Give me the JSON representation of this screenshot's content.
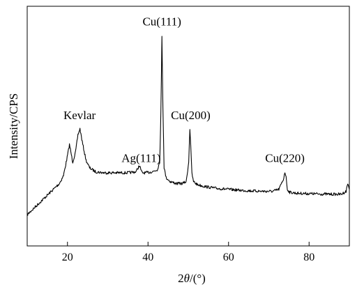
{
  "chart_data": {
    "type": "line",
    "title": "",
    "xlabel_parts": [
      "2",
      "θ",
      "/(°)"
    ],
    "ylabel": "Intensity/CPS",
    "xlim": [
      10,
      90
    ],
    "ylim": [
      0,
      100
    ],
    "x_ticks": [
      20,
      40,
      60,
      80
    ],
    "y_ticks_labeled": false,
    "grid": false,
    "legend": "none",
    "line_color": "#000000",
    "series": [
      {
        "x": [
          10,
          12,
          14,
          16,
          18,
          19,
          19.8,
          20.5,
          21.3,
          22,
          22.6,
          23.1,
          23.8,
          24.6,
          25.5,
          27,
          29,
          32,
          35,
          37,
          37.8,
          38.1,
          38.5,
          39.5,
          41,
          42.3,
          42.9,
          43.2,
          43.45,
          43.7,
          44.0,
          44.5,
          45.5,
          47,
          48.5,
          49.5,
          50.1,
          50.4,
          50.6,
          50.9,
          51.3,
          52.2,
          54,
          57,
          60,
          63,
          66,
          69,
          71,
          72.5,
          73.6,
          74.0,
          74.3,
          74.6,
          75.2,
          77,
          80,
          83,
          86,
          88,
          89.2,
          89.6,
          90
        ],
        "y": [
          6,
          10,
          14,
          18,
          22,
          26,
          34,
          42,
          33,
          38,
          47,
          50,
          42,
          34,
          30,
          28,
          27.5,
          27.5,
          27.5,
          28,
          31,
          30,
          27.5,
          27.5,
          28,
          29,
          33,
          58,
          98,
          62,
          30,
          25,
          23,
          22,
          22,
          23,
          33,
          50,
          42,
          27,
          23,
          21.5,
          20.5,
          19.5,
          19,
          18.5,
          18.2,
          18,
          18,
          19,
          24,
          28,
          25,
          19,
          17.5,
          17,
          16.8,
          16.6,
          16.5,
          16.5,
          18,
          22,
          19
        ]
      }
    ],
    "annotations": [
      {
        "text": "Kevlar",
        "x": 23,
        "y": 55
      },
      {
        "text": "Ag(111)",
        "x": 38.3,
        "y": 33
      },
      {
        "text": "Cu(111)",
        "x": 43.45,
        "y": 103
      },
      {
        "text": "Cu(200)",
        "x": 50.6,
        "y": 55
      },
      {
        "text": "Cu(220)",
        "x": 74.0,
        "y": 33
      }
    ]
  }
}
